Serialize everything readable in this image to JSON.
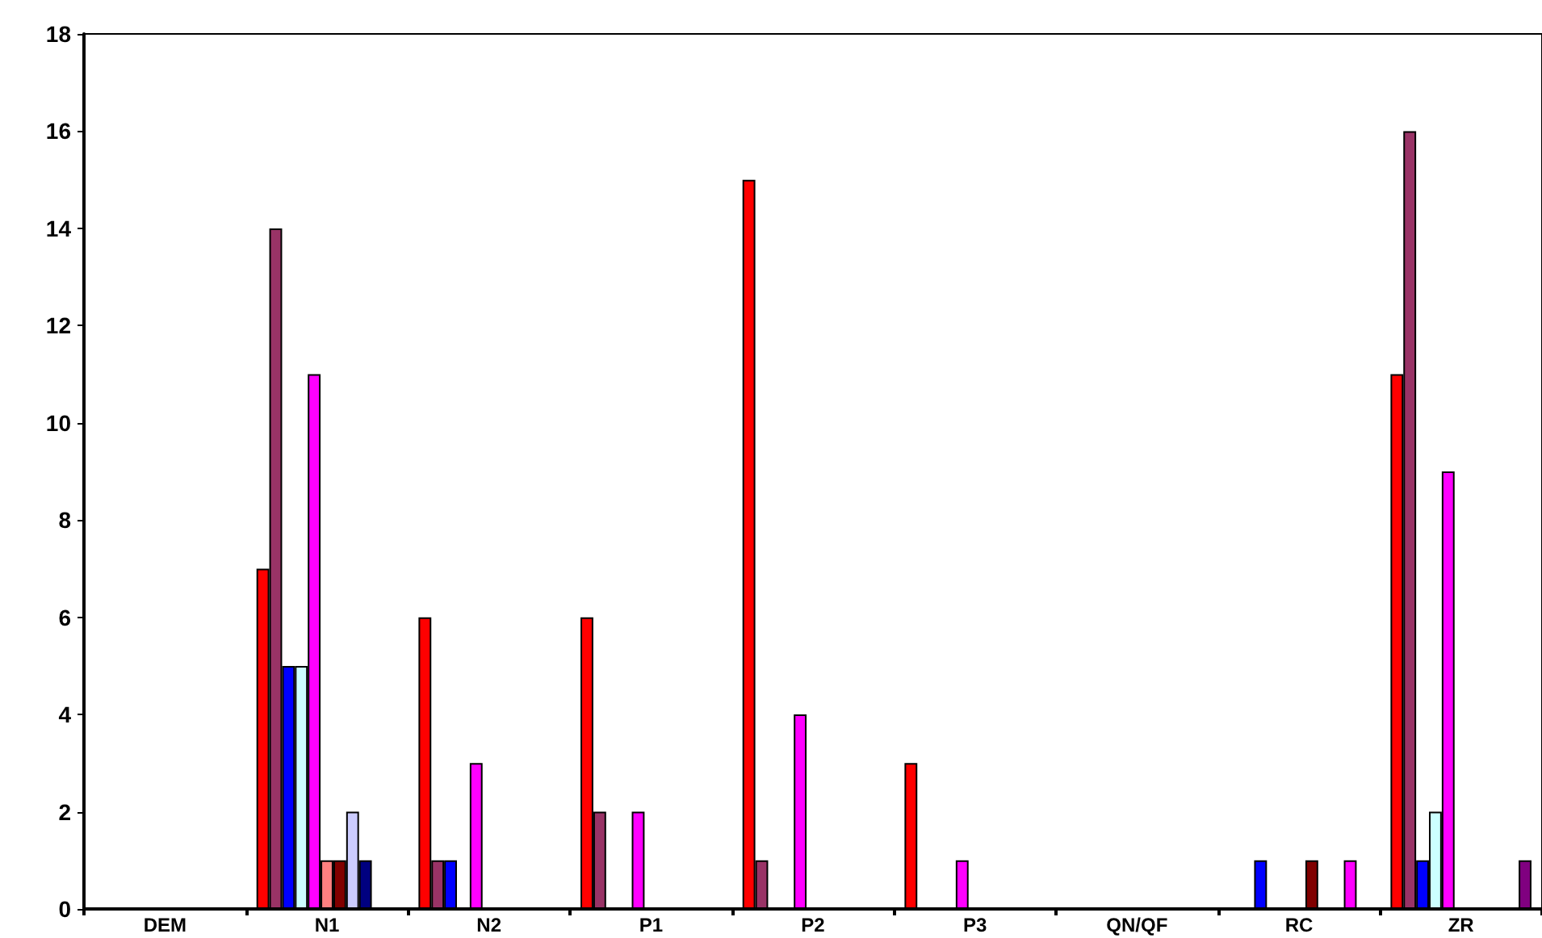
{
  "chart_data": {
    "type": "bar",
    "categories": [
      "DEM",
      "N1",
      "N2",
      "P1",
      "P2",
      "P3",
      "QN/QF",
      "RC",
      "ZR"
    ],
    "series": [
      {
        "color": "#ff0000",
        "values": [
          null,
          7,
          6,
          6,
          15,
          3,
          null,
          null,
          11
        ]
      },
      {
        "color": "#993366",
        "values": [
          null,
          14,
          1,
          2,
          1,
          null,
          null,
          null,
          16
        ]
      },
      {
        "color": "#0000ff",
        "values": [
          null,
          5,
          1,
          null,
          null,
          null,
          null,
          1,
          1
        ]
      },
      {
        "color": "#ccffff",
        "values": [
          null,
          5,
          null,
          null,
          null,
          null,
          null,
          null,
          2
        ]
      },
      {
        "color": "#ff00ff",
        "values": [
          null,
          11,
          3,
          2,
          4,
          1,
          null,
          null,
          9
        ]
      },
      {
        "color": "#ff8080",
        "values": [
          null,
          1,
          null,
          null,
          null,
          null,
          null,
          null,
          null
        ]
      },
      {
        "color": "#800000",
        "values": [
          null,
          1,
          null,
          null,
          null,
          null,
          null,
          1,
          null
        ]
      },
      {
        "color": "#ccccff",
        "values": [
          null,
          2,
          null,
          null,
          null,
          null,
          null,
          null,
          null
        ]
      },
      {
        "color": "#000080",
        "values": [
          null,
          1,
          null,
          null,
          null,
          null,
          null,
          null,
          null
        ]
      },
      {
        "color": "#ff00ff",
        "values": [
          null,
          null,
          null,
          null,
          null,
          null,
          null,
          1,
          null
        ]
      },
      {
        "color": "#800080",
        "values": [
          null,
          null,
          null,
          null,
          null,
          null,
          null,
          null,
          1
        ]
      }
    ],
    "ylim": [
      0,
      18
    ],
    "yticks": [
      0,
      2,
      4,
      6,
      8,
      10,
      12,
      14,
      16,
      18
    ],
    "grid": false
  }
}
